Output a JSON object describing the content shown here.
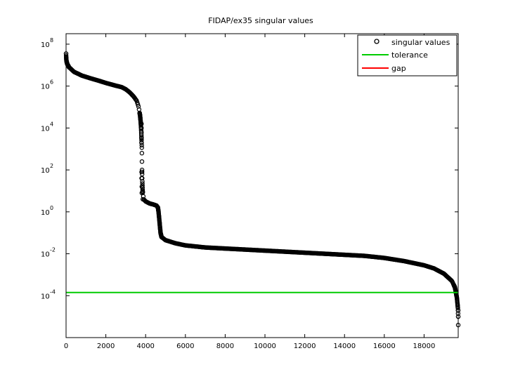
{
  "chart_data": {
    "type": "scatter",
    "title": "FIDAP/ex35 singular values",
    "xlabel": "",
    "ylabel": "",
    "xlim": [
      0,
      19716
    ],
    "ylim_log10": [
      -6,
      8.5
    ],
    "y_scale": "log",
    "grid": false,
    "legend_position": "top-right",
    "x_ticks": [
      0,
      2000,
      4000,
      6000,
      8000,
      10000,
      12000,
      14000,
      16000,
      18000
    ],
    "x_tick_labels": [
      "0",
      "2000",
      "4000",
      "6000",
      "8000",
      "10000",
      "12000",
      "14000",
      "16000",
      "18000"
    ],
    "y_ticks_exp": [
      -4,
      -2,
      0,
      2,
      4,
      6,
      8
    ],
    "y_tick_labels": [
      {
        "base": "10",
        "exp": "-4"
      },
      {
        "base": "10",
        "exp": "-2"
      },
      {
        "base": "10",
        "exp": "0"
      },
      {
        "base": "10",
        "exp": "2"
      },
      {
        "base": "10",
        "exp": "4"
      },
      {
        "base": "10",
        "exp": "6"
      },
      {
        "base": "10",
        "exp": "8"
      }
    ],
    "series": [
      {
        "name": "singular values",
        "marker": "circle",
        "color": "#000000",
        "profile_log10": [
          [
            0,
            7.55
          ],
          [
            5,
            7.4
          ],
          [
            20,
            7.2
          ],
          [
            60,
            7.05
          ],
          [
            150,
            6.9
          ],
          [
            400,
            6.68
          ],
          [
            800,
            6.5
          ],
          [
            1200,
            6.38
          ],
          [
            1600,
            6.27
          ],
          [
            2000,
            6.15
          ],
          [
            2500,
            6.02
          ],
          [
            2800,
            5.95
          ],
          [
            3000,
            5.85
          ],
          [
            3200,
            5.7
          ],
          [
            3400,
            5.5
          ],
          [
            3550,
            5.3
          ],
          [
            3650,
            5.0
          ],
          [
            3720,
            4.6
          ],
          [
            3760,
            4.2
          ],
          [
            3790,
            3.6
          ],
          [
            3810,
            3.0
          ],
          [
            3820,
            2.0
          ],
          [
            3830,
            1.5
          ],
          [
            3850,
            1.0
          ],
          [
            3900,
            0.6
          ],
          [
            4000,
            0.5
          ],
          [
            4100,
            0.45
          ],
          [
            4200,
            0.4
          ],
          [
            4400,
            0.35
          ],
          [
            4550,
            0.3
          ],
          [
            4620,
            0.2
          ],
          [
            4650,
            0.0
          ],
          [
            4700,
            -0.5
          ],
          [
            4750,
            -1.0
          ],
          [
            4800,
            -1.2
          ],
          [
            5000,
            -1.35
          ],
          [
            5500,
            -1.5
          ],
          [
            6000,
            -1.6
          ],
          [
            7000,
            -1.7
          ],
          [
            8000,
            -1.75
          ],
          [
            10000,
            -1.85
          ],
          [
            12000,
            -1.95
          ],
          [
            14000,
            -2.05
          ],
          [
            15000,
            -2.1
          ],
          [
            16000,
            -2.2
          ],
          [
            17000,
            -2.35
          ],
          [
            18000,
            -2.55
          ],
          [
            18500,
            -2.7
          ],
          [
            19000,
            -2.95
          ],
          [
            19400,
            -3.3
          ],
          [
            19550,
            -3.6
          ],
          [
            19650,
            -4.1
          ],
          [
            19700,
            -4.6
          ],
          [
            19716,
            -5.0
          ]
        ],
        "isolated_points": [
          [
            3790,
            4.2
          ],
          [
            3790,
            4.0
          ],
          [
            3790,
            3.8
          ],
          [
            3790,
            3.5
          ],
          [
            3790,
            3.3
          ],
          [
            3800,
            1.9
          ],
          [
            3800,
            1.6
          ],
          [
            3810,
            1.2
          ],
          [
            3810,
            0.9
          ],
          [
            3860,
            0.6
          ],
          [
            19716,
            -5.4
          ],
          [
            19716,
            -4.7
          ]
        ]
      },
      {
        "name": "tolerance",
        "type": "hline",
        "color": "#00cc00",
        "y_log10": -3.85
      },
      {
        "name": "gap",
        "type": "line",
        "color": "#ff0000",
        "values": []
      }
    ]
  }
}
